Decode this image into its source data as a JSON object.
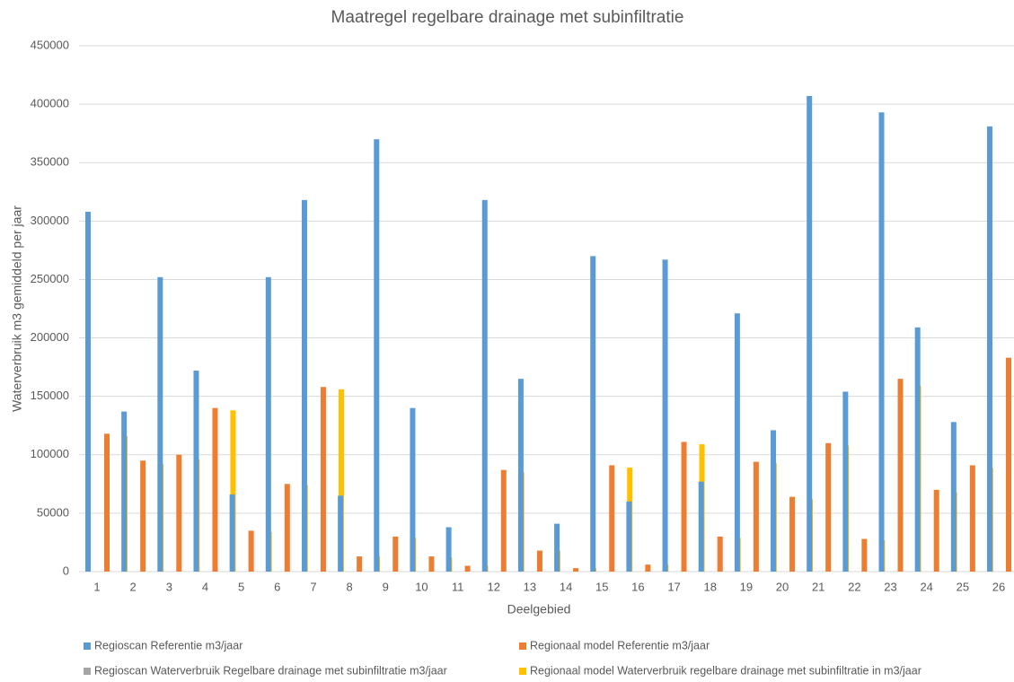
{
  "chart_data": {
    "type": "bar",
    "title": "Maatregel regelbare drainage met subinfiltratie",
    "x_label": "Deelgebied",
    "y_label": "Waterverbruik m3  gemiddeld per jaar",
    "categories": [
      "1",
      "2",
      "3",
      "4",
      "5",
      "6",
      "7",
      "8",
      "9",
      "10",
      "11",
      "12",
      "13",
      "14",
      "15",
      "16",
      "17",
      "18",
      "19",
      "20",
      "21",
      "22",
      "23",
      "24",
      "25",
      "26"
    ],
    "series": [
      {
        "name": "Regioscan  Referentie  m3/jaar",
        "color": "#5b9bd5",
        "values": [
          308000,
          137000,
          252000,
          172000,
          66000,
          252000,
          318000,
          65000,
          370000,
          140000,
          38000,
          318000,
          165000,
          41000,
          270000,
          60000,
          267000,
          77000,
          221000,
          121000,
          407000,
          154000,
          393000,
          209000,
          128000,
          381000
        ]
      },
      {
        "name": "Regionaal model Referentie m3/jaar",
        "color": "#ed7d31",
        "values": [
          118000,
          95000,
          100000,
          140000,
          35000,
          75000,
          158000,
          13000,
          30000,
          13000,
          5000,
          87000,
          18000,
          3000,
          91000,
          6000,
          111000,
          30000,
          94000,
          64000,
          110000,
          28000,
          165000,
          70000,
          91000,
          183000
        ]
      },
      {
        "name": "Regioscan  Waterverbruik Regelbare drainage met subinfiltratie m3/jaar",
        "color": "#a5a5a5",
        "values": [
          0,
          0,
          0,
          0,
          0,
          0,
          0,
          0,
          0,
          0,
          0,
          0,
          0,
          0,
          0,
          0,
          0,
          0,
          0,
          0,
          0,
          0,
          0,
          0,
          0,
          0
        ]
      },
      {
        "name": "Regionaal model Waterverbruik regelbare drainage met subinfiltratie in m3/jaar",
        "color": "#ffc000",
        "values": [
          116000,
          92000,
          96000,
          138000,
          34000,
          74000,
          156000,
          13000,
          29000,
          12000,
          5000,
          85000,
          18000,
          3000,
          89000,
          6000,
          109000,
          29000,
          93000,
          62000,
          108000,
          27000,
          159000,
          68000,
          89000,
          181000
        ]
      }
    ],
    "ylim": [
      0,
      450000
    ],
    "yticks": [
      0,
      50000,
      100000,
      150000,
      200000,
      250000,
      300000,
      350000,
      400000,
      450000
    ],
    "grid": true
  }
}
